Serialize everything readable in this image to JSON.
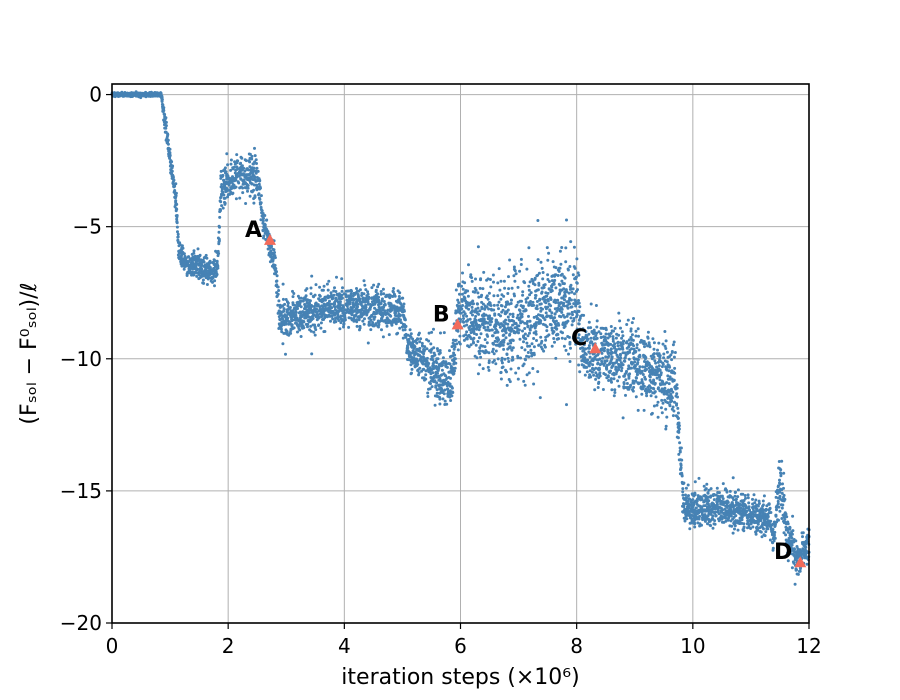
{
  "chart_data": {
    "type": "scatter",
    "xlabel": "iteration steps (×10⁶)",
    "ylabel": "(Fₛₒₗ − F⁰ₛₒₗ)/ℓ",
    "xlim": [
      0,
      12
    ],
    "ylim": [
      -20,
      0.4
    ],
    "x_ticks": [
      "0",
      "2",
      "4",
      "6",
      "8",
      "10",
      "12"
    ],
    "y_ticks": [
      "0",
      "−5",
      "−10",
      "−15",
      "−20"
    ],
    "grid": true,
    "series_color": "#4682b4",
    "marker_color": "#f26b5b",
    "trend": [
      {
        "x": 0.0,
        "y": 0.0,
        "lo": -0.1,
        "hi": 0.1
      },
      {
        "x": 0.85,
        "y": 0.0,
        "lo": -0.1,
        "hi": 0.1
      },
      {
        "x": 0.9,
        "y": -1.0,
        "lo": -1.5,
        "hi": -0.2
      },
      {
        "x": 1.0,
        "y": -2.6,
        "lo": -3.0,
        "hi": -2.0
      },
      {
        "x": 1.1,
        "y": -4.2,
        "lo": -4.8,
        "hi": -3.2
      },
      {
        "x": 1.15,
        "y": -6.2,
        "lo": -6.6,
        "hi": -5.2
      },
      {
        "x": 1.3,
        "y": -6.5,
        "lo": -7.0,
        "hi": -6.0
      },
      {
        "x": 1.5,
        "y": -6.5,
        "lo": -7.2,
        "hi": -5.7
      },
      {
        "x": 1.7,
        "y": -6.8,
        "lo": -7.4,
        "hi": -6.0
      },
      {
        "x": 1.82,
        "y": -6.6,
        "lo": -7.3,
        "hi": -5.8
      },
      {
        "x": 1.88,
        "y": -3.3,
        "lo": -4.8,
        "hi": -2.4
      },
      {
        "x": 2.2,
        "y": -3.0,
        "lo": -4.0,
        "hi": -2.0
      },
      {
        "x": 2.5,
        "y": -3.2,
        "lo": -4.2,
        "hi": -2.1
      },
      {
        "x": 2.6,
        "y": -4.8,
        "lo": -5.6,
        "hi": -4.0
      },
      {
        "x": 2.7,
        "y": -5.5,
        "lo": -6.2,
        "hi": -4.9
      },
      {
        "x": 2.8,
        "y": -6.2,
        "lo": -7.0,
        "hi": -5.5
      },
      {
        "x": 2.9,
        "y": -8.5,
        "lo": -9.7,
        "hi": -7.5
      },
      {
        "x": 3.5,
        "y": -8.3,
        "lo": -9.3,
        "hi": -7.0
      },
      {
        "x": 4.2,
        "y": -8.2,
        "lo": -9.2,
        "hi": -6.8
      },
      {
        "x": 5.0,
        "y": -8.4,
        "lo": -9.3,
        "hi": -7.0
      },
      {
        "x": 5.1,
        "y": -9.8,
        "lo": -10.5,
        "hi": -8.8
      },
      {
        "x": 5.5,
        "y": -10.5,
        "lo": -12.0,
        "hi": -8.8
      },
      {
        "x": 5.85,
        "y": -10.8,
        "lo": -12.2,
        "hi": -9.6
      },
      {
        "x": 5.95,
        "y": -8.7,
        "lo": -10.0,
        "hi": -6.2
      },
      {
        "x": 6.4,
        "y": -8.8,
        "lo": -11.0,
        "hi": -6.2
      },
      {
        "x": 6.9,
        "y": -9.5,
        "lo": -11.8,
        "hi": -5.5
      },
      {
        "x": 7.5,
        "y": -8.8,
        "lo": -10.8,
        "hi": -5.5
      },
      {
        "x": 8.0,
        "y": -8.5,
        "lo": -10.5,
        "hi": -5.0
      },
      {
        "x": 8.1,
        "y": -10.0,
        "lo": -11.6,
        "hi": -8.2
      },
      {
        "x": 8.3,
        "y": -9.6,
        "lo": -11.8,
        "hi": -7.8
      },
      {
        "x": 9.0,
        "y": -10.2,
        "lo": -12.0,
        "hi": -8.0
      },
      {
        "x": 9.7,
        "y": -10.8,
        "lo": -13.2,
        "hi": -9.0
      },
      {
        "x": 9.85,
        "y": -15.8,
        "lo": -16.6,
        "hi": -14.8
      },
      {
        "x": 10.5,
        "y": -15.8,
        "lo": -16.6,
        "hi": -14.6
      },
      {
        "x": 11.3,
        "y": -16.0,
        "lo": -17.0,
        "hi": -15.0
      },
      {
        "x": 11.4,
        "y": -17.0,
        "lo": -17.6,
        "hi": -16.0
      },
      {
        "x": 11.5,
        "y": -14.5,
        "lo": -16.0,
        "hi": -12.6
      },
      {
        "x": 11.62,
        "y": -16.5,
        "lo": -17.6,
        "hi": -15.5
      },
      {
        "x": 11.8,
        "y": -17.8,
        "lo": -18.6,
        "hi": -16.8
      },
      {
        "x": 12.0,
        "y": -17.3,
        "lo": -18.2,
        "hi": -16.0
      }
    ],
    "markers": [
      {
        "label": "A",
        "x": 2.72,
        "y": -5.5
      },
      {
        "label": "B",
        "x": 5.95,
        "y": -8.7
      },
      {
        "label": "C",
        "x": 8.32,
        "y": -9.6
      },
      {
        "label": "D",
        "x": 11.85,
        "y": -17.7
      }
    ]
  }
}
